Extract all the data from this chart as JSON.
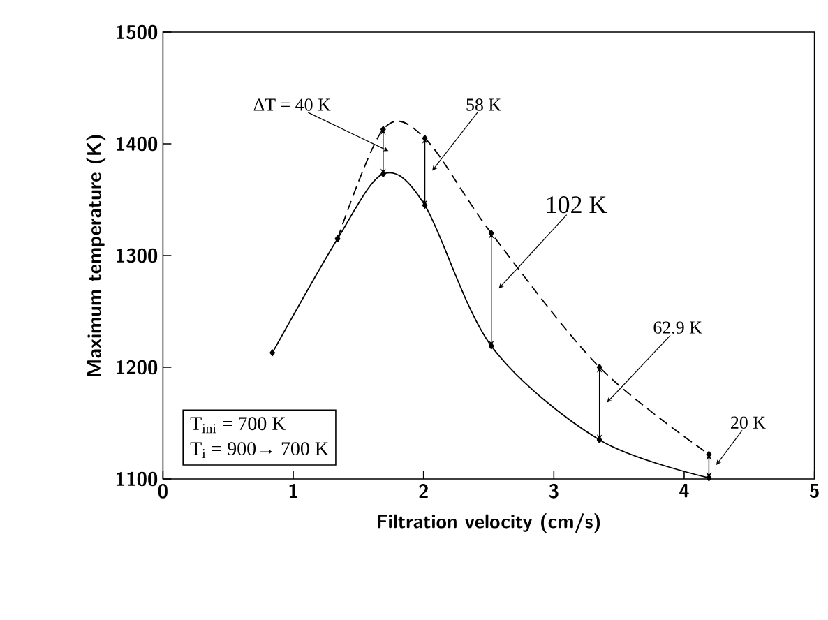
{
  "chart_data": {
    "type": "line",
    "xlabel": "Filtration velocity (cm/s)",
    "ylabel": "Maximum temperature (K)",
    "xlim": [
      0,
      5
    ],
    "ylim": [
      1100,
      1500
    ],
    "xticks": [
      0,
      1,
      2,
      3,
      4,
      5
    ],
    "yticks": [
      1100,
      1200,
      1300,
      1400,
      1500
    ],
    "marker": "diamond",
    "series": [
      {
        "color": "#000000",
        "line_style": "solid",
        "x": [
          0.84,
          1.34,
          1.69,
          2.01,
          2.52,
          3.35,
          4.19
        ],
        "values": [
          1213,
          1315,
          1373,
          1345,
          1219,
          1135,
          1101
        ]
      },
      {
        "color": "#000000",
        "line_style": "dashed",
        "x": [
          1.34,
          1.69,
          2.01,
          2.52,
          3.35,
          4.19
        ],
        "values": [
          1315,
          1413,
          1405,
          1320,
          1200,
          1122
        ]
      }
    ],
    "annotations": [
      "ΔT = 40 K",
      "58 K",
      "102 K",
      "62.9 K",
      "20 K",
      "T$_{ini}$ = 700 K",
      "T$_{i}$ = 900→ 700 K"
    ]
  }
}
